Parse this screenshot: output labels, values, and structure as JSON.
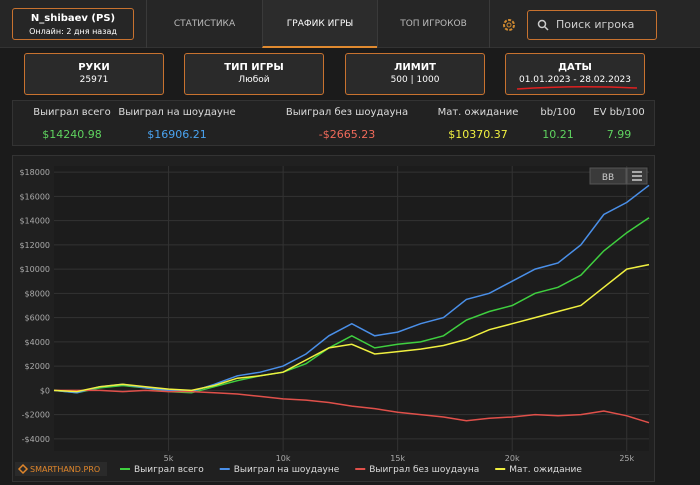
{
  "header": {
    "player": "N_shibaev (PS)",
    "status": "Онлайн: 2 дня назад",
    "tabs": [
      "СТАТИСТИКА",
      "ГРАФИК ИГРЫ",
      "ТОП ИГРОКОВ"
    ],
    "active_tab": 1,
    "search": "Поиск игрока"
  },
  "filters": [
    {
      "label": "РУКИ",
      "value": "25971"
    },
    {
      "label": "ТИП ИГРЫ",
      "value": "Любой"
    },
    {
      "label": "ЛИМИТ",
      "value": "500 | 1000"
    },
    {
      "label": "ДАТЫ",
      "value": "01.01.2023 - 28.02.2023"
    }
  ],
  "stats": {
    "headers": [
      "Выиграл всего",
      "Выиграл на шоудауне",
      "Выиграл без шоудауна",
      "Мат. ожидание",
      "bb/100",
      "EV bb/100"
    ],
    "values": [
      "$14240.98",
      "$16906.21",
      "-$2665.23",
      "$10370.37",
      "10.21",
      "7.99"
    ],
    "colors": [
      "#5fd35f",
      "#4aa3f0",
      "#f06a5a",
      "#f0f040",
      "#5fd35f",
      "#5fd35f"
    ]
  },
  "chart_data": {
    "type": "line",
    "logo": "SMARTHAND.PRO",
    "button": "BB",
    "grid": true,
    "x": [
      0,
      1000,
      2000,
      3000,
      4000,
      5000,
      6000,
      7000,
      8000,
      9000,
      10000,
      11000,
      12000,
      13000,
      14000,
      15000,
      16000,
      17000,
      18000,
      19000,
      20000,
      21000,
      22000,
      23000,
      24000,
      25000,
      25971
    ],
    "xlim": [
      0,
      25971
    ],
    "xticks": [
      {
        "value": 5000,
        "label": "5k"
      },
      {
        "value": 10000,
        "label": "10k"
      },
      {
        "value": 15000,
        "label": "15k"
      },
      {
        "value": 20000,
        "label": "20k"
      },
      {
        "value": 25000,
        "label": "25k"
      }
    ],
    "ylim": [
      -5000,
      18500
    ],
    "yticks": [
      {
        "value": -4000,
        "label": "-$4000"
      },
      {
        "value": -2000,
        "label": "-$2000"
      },
      {
        "value": 0,
        "label": "$0"
      },
      {
        "value": 2000,
        "label": "$2000"
      },
      {
        "value": 4000,
        "label": "$4000"
      },
      {
        "value": 6000,
        "label": "$6000"
      },
      {
        "value": 8000,
        "label": "$8000"
      },
      {
        "value": 10000,
        "label": "$10000"
      },
      {
        "value": 12000,
        "label": "$12000"
      },
      {
        "value": 14000,
        "label": "$14000"
      },
      {
        "value": 16000,
        "label": "$16000"
      },
      {
        "value": 18000,
        "label": "$18000"
      }
    ],
    "series": [
      {
        "name": "Выиграл всего",
        "color": "#3fcf3f",
        "values": [
          0,
          -200,
          200,
          400,
          200,
          -100,
          -200,
          300,
          800,
          1200,
          1500,
          2200,
          3500,
          4500,
          3500,
          3800,
          4000,
          4500,
          5800,
          6500,
          7000,
          8000,
          8500,
          9500,
          11500,
          13000,
          14240.98
        ]
      },
      {
        "name": "Выиграл на шоудауне",
        "color": "#4a8fe8",
        "values": [
          0,
          -200,
          300,
          500,
          200,
          0,
          -100,
          500,
          1200,
          1500,
          2000,
          3000,
          4500,
          5500,
          4500,
          4800,
          5500,
          6000,
          7500,
          8000,
          9000,
          10000,
          10500,
          12000,
          14500,
          15500,
          16906.21
        ]
      },
      {
        "name": "Выиграл без шоудауна",
        "color": "#e0504a",
        "values": [
          0,
          0,
          0,
          -100,
          0,
          -100,
          -100,
          -200,
          -300,
          -500,
          -700,
          -800,
          -1000,
          -1300,
          -1500,
          -1800,
          -2000,
          -2200,
          -2500,
          -2300,
          -2200,
          -2000,
          -2100,
          -2000,
          -1700,
          -2100,
          -2665.23
        ]
      },
      {
        "name": "Мат. ожидание",
        "color": "#f0f040",
        "values": [
          0,
          -100,
          300,
          500,
          300,
          100,
          0,
          400,
          1000,
          1200,
          1500,
          2500,
          3500,
          3800,
          3000,
          3200,
          3400,
          3700,
          4200,
          5000,
          5500,
          6000,
          6500,
          7000,
          8500,
          10000,
          10370.37
        ]
      }
    ]
  }
}
